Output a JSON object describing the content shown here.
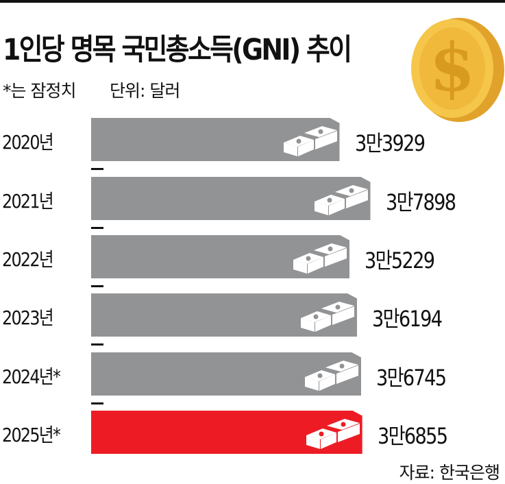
{
  "chart_data": {
    "type": "bar",
    "orientation": "horizontal",
    "title": "1인당 명목 국민총소득(GNI) 추이",
    "note": "*는 잠정치",
    "unit": "단위: 달러",
    "source": "자료: 한국은행",
    "categories": [
      "2020년",
      "2021년",
      "2022년",
      "2023년",
      "2024년*",
      "2025년*"
    ],
    "values": [
      33929,
      37898,
      35229,
      36194,
      36745,
      36855
    ],
    "labels": [
      "3만3929",
      "3만7898",
      "3만5229",
      "3만6194",
      "3만6745",
      "3만6855"
    ],
    "highlight_index": 5,
    "colors": {
      "bar": "#929395",
      "highlight": "#ed1c24",
      "coin": "#f2b83a"
    }
  }
}
